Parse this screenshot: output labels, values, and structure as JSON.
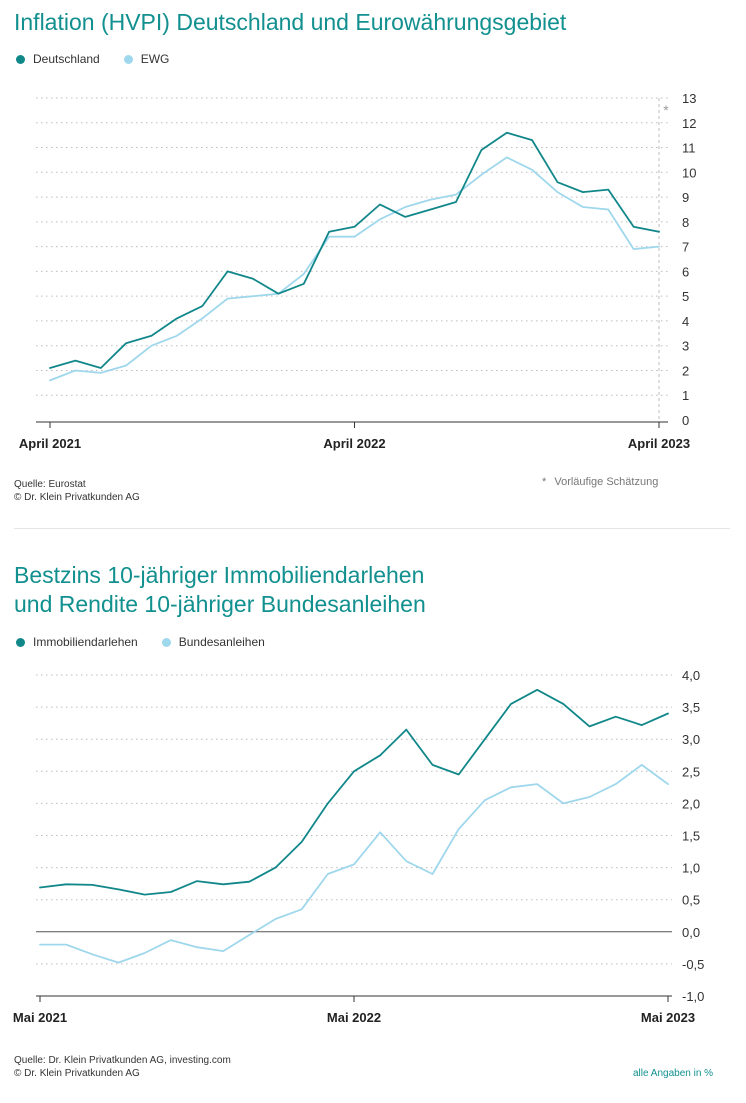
{
  "charts": [
    {
      "title": "Inflation (HVPI) Deutschland und Eurowährungsgebiet",
      "legend": [
        {
          "name": "Deutschland",
          "color": "#11878a"
        },
        {
          "name": "EWG",
          "color": "#9fd7ec"
        }
      ],
      "source_lines": [
        "Quelle: Eurostat",
        "© Dr. Klein Privatkunden AG"
      ],
      "note": "Vorläufige Schätzung",
      "estimate_marker": "*"
    },
    {
      "title_lines": [
        "Bestzins 10-jähriger Immobiliendarlehen",
        "und Rendite 10-jähriger Bundesanleihen"
      ],
      "legend": [
        {
          "name": "Immobiliendarlehen",
          "color": "#11878a"
        },
        {
          "name": "Bundesanleihen",
          "color": "#9fd7ec"
        }
      ],
      "source_lines": [
        "Quelle: Dr. Klein Privatkunden AG, investing.com",
        "© Dr. Klein Privatkunden AG"
      ],
      "note": "alle Angaben in %"
    }
  ],
  "chart_data": [
    {
      "type": "line",
      "title": "Inflation (HVPI) Deutschland und Eurowährungsgebiet",
      "x": [
        "2021-04",
        "2021-05",
        "2021-06",
        "2021-07",
        "2021-08",
        "2021-09",
        "2021-10",
        "2021-11",
        "2021-12",
        "2022-01",
        "2022-02",
        "2022-03",
        "2022-04",
        "2022-05",
        "2022-06",
        "2022-07",
        "2022-08",
        "2022-09",
        "2022-10",
        "2022-11",
        "2022-12",
        "2023-01",
        "2023-02",
        "2023-03",
        "2023-04"
      ],
      "x_tick_labels": [
        "April 2021",
        "April 2022",
        "April 2023"
      ],
      "x_tick_indices": [
        0,
        12,
        24
      ],
      "ylim": [
        0,
        13
      ],
      "y_ticks": [
        "0",
        "1",
        "2",
        "3",
        "4",
        "5",
        "6",
        "7",
        "8",
        "9",
        "10",
        "11",
        "12",
        "13"
      ],
      "grid": true,
      "legend_position": "top-left",
      "series": [
        {
          "name": "Deutschland",
          "color": "#11878a",
          "values": [
            2.1,
            2.4,
            2.1,
            3.1,
            3.4,
            4.1,
            4.6,
            6.0,
            5.7,
            5.1,
            5.5,
            7.6,
            7.8,
            8.7,
            8.2,
            8.5,
            8.8,
            10.9,
            11.6,
            11.3,
            9.6,
            9.2,
            9.3,
            7.8,
            7.6
          ]
        },
        {
          "name": "EWG",
          "color": "#9fd7ec",
          "values": [
            1.6,
            2.0,
            1.9,
            2.2,
            3.0,
            3.4,
            4.1,
            4.9,
            5.0,
            5.1,
            5.9,
            7.4,
            7.4,
            8.1,
            8.6,
            8.9,
            9.1,
            9.9,
            10.6,
            10.1,
            9.2,
            8.6,
            8.5,
            6.9,
            7.0
          ]
        }
      ]
    },
    {
      "type": "line",
      "title": "Bestzins 10-jähriger Immobiliendarlehen und Rendite 10-jähriger Bundesanleihen",
      "x": [
        "2021-05",
        "2021-06",
        "2021-07",
        "2021-08",
        "2021-09",
        "2021-10",
        "2021-11",
        "2021-12",
        "2022-01",
        "2022-02",
        "2022-03",
        "2022-04",
        "2022-05",
        "2022-06",
        "2022-07",
        "2022-08",
        "2022-09",
        "2022-10",
        "2022-11",
        "2022-12",
        "2023-01",
        "2023-02",
        "2023-03",
        "2023-04",
        "2023-05"
      ],
      "x_tick_labels": [
        "Mai 2021",
        "Mai 2022",
        "Mai 2023"
      ],
      "x_tick_indices": [
        0,
        12,
        24
      ],
      "ylim": [
        -1.0,
        4.0
      ],
      "y_ticks": [
        "-1,0",
        "-0,5",
        "0,0",
        "0,5",
        "1,0",
        "1,5",
        "2,0",
        "2,5",
        "3,0",
        "3,5",
        "4,0"
      ],
      "grid": true,
      "legend_position": "top-left",
      "series": [
        {
          "name": "Immobiliendarlehen",
          "color": "#11878a",
          "values": [
            0.69,
            0.74,
            0.73,
            0.66,
            0.58,
            0.62,
            0.79,
            0.74,
            0.78,
            1.0,
            1.4,
            2.0,
            2.5,
            2.75,
            3.15,
            2.6,
            2.45,
            3.0,
            3.55,
            3.77,
            3.55,
            3.2,
            3.35,
            3.22,
            3.4
          ]
        },
        {
          "name": "Bundesanleihen",
          "color": "#9fd7ec",
          "values": [
            -0.2,
            -0.2,
            -0.35,
            -0.48,
            -0.33,
            -0.13,
            -0.24,
            -0.3,
            -0.05,
            0.2,
            0.35,
            0.9,
            1.05,
            1.55,
            1.1,
            0.9,
            1.6,
            2.05,
            2.25,
            2.3,
            2.0,
            2.1,
            2.3,
            2.6,
            2.3
          ]
        }
      ]
    }
  ]
}
